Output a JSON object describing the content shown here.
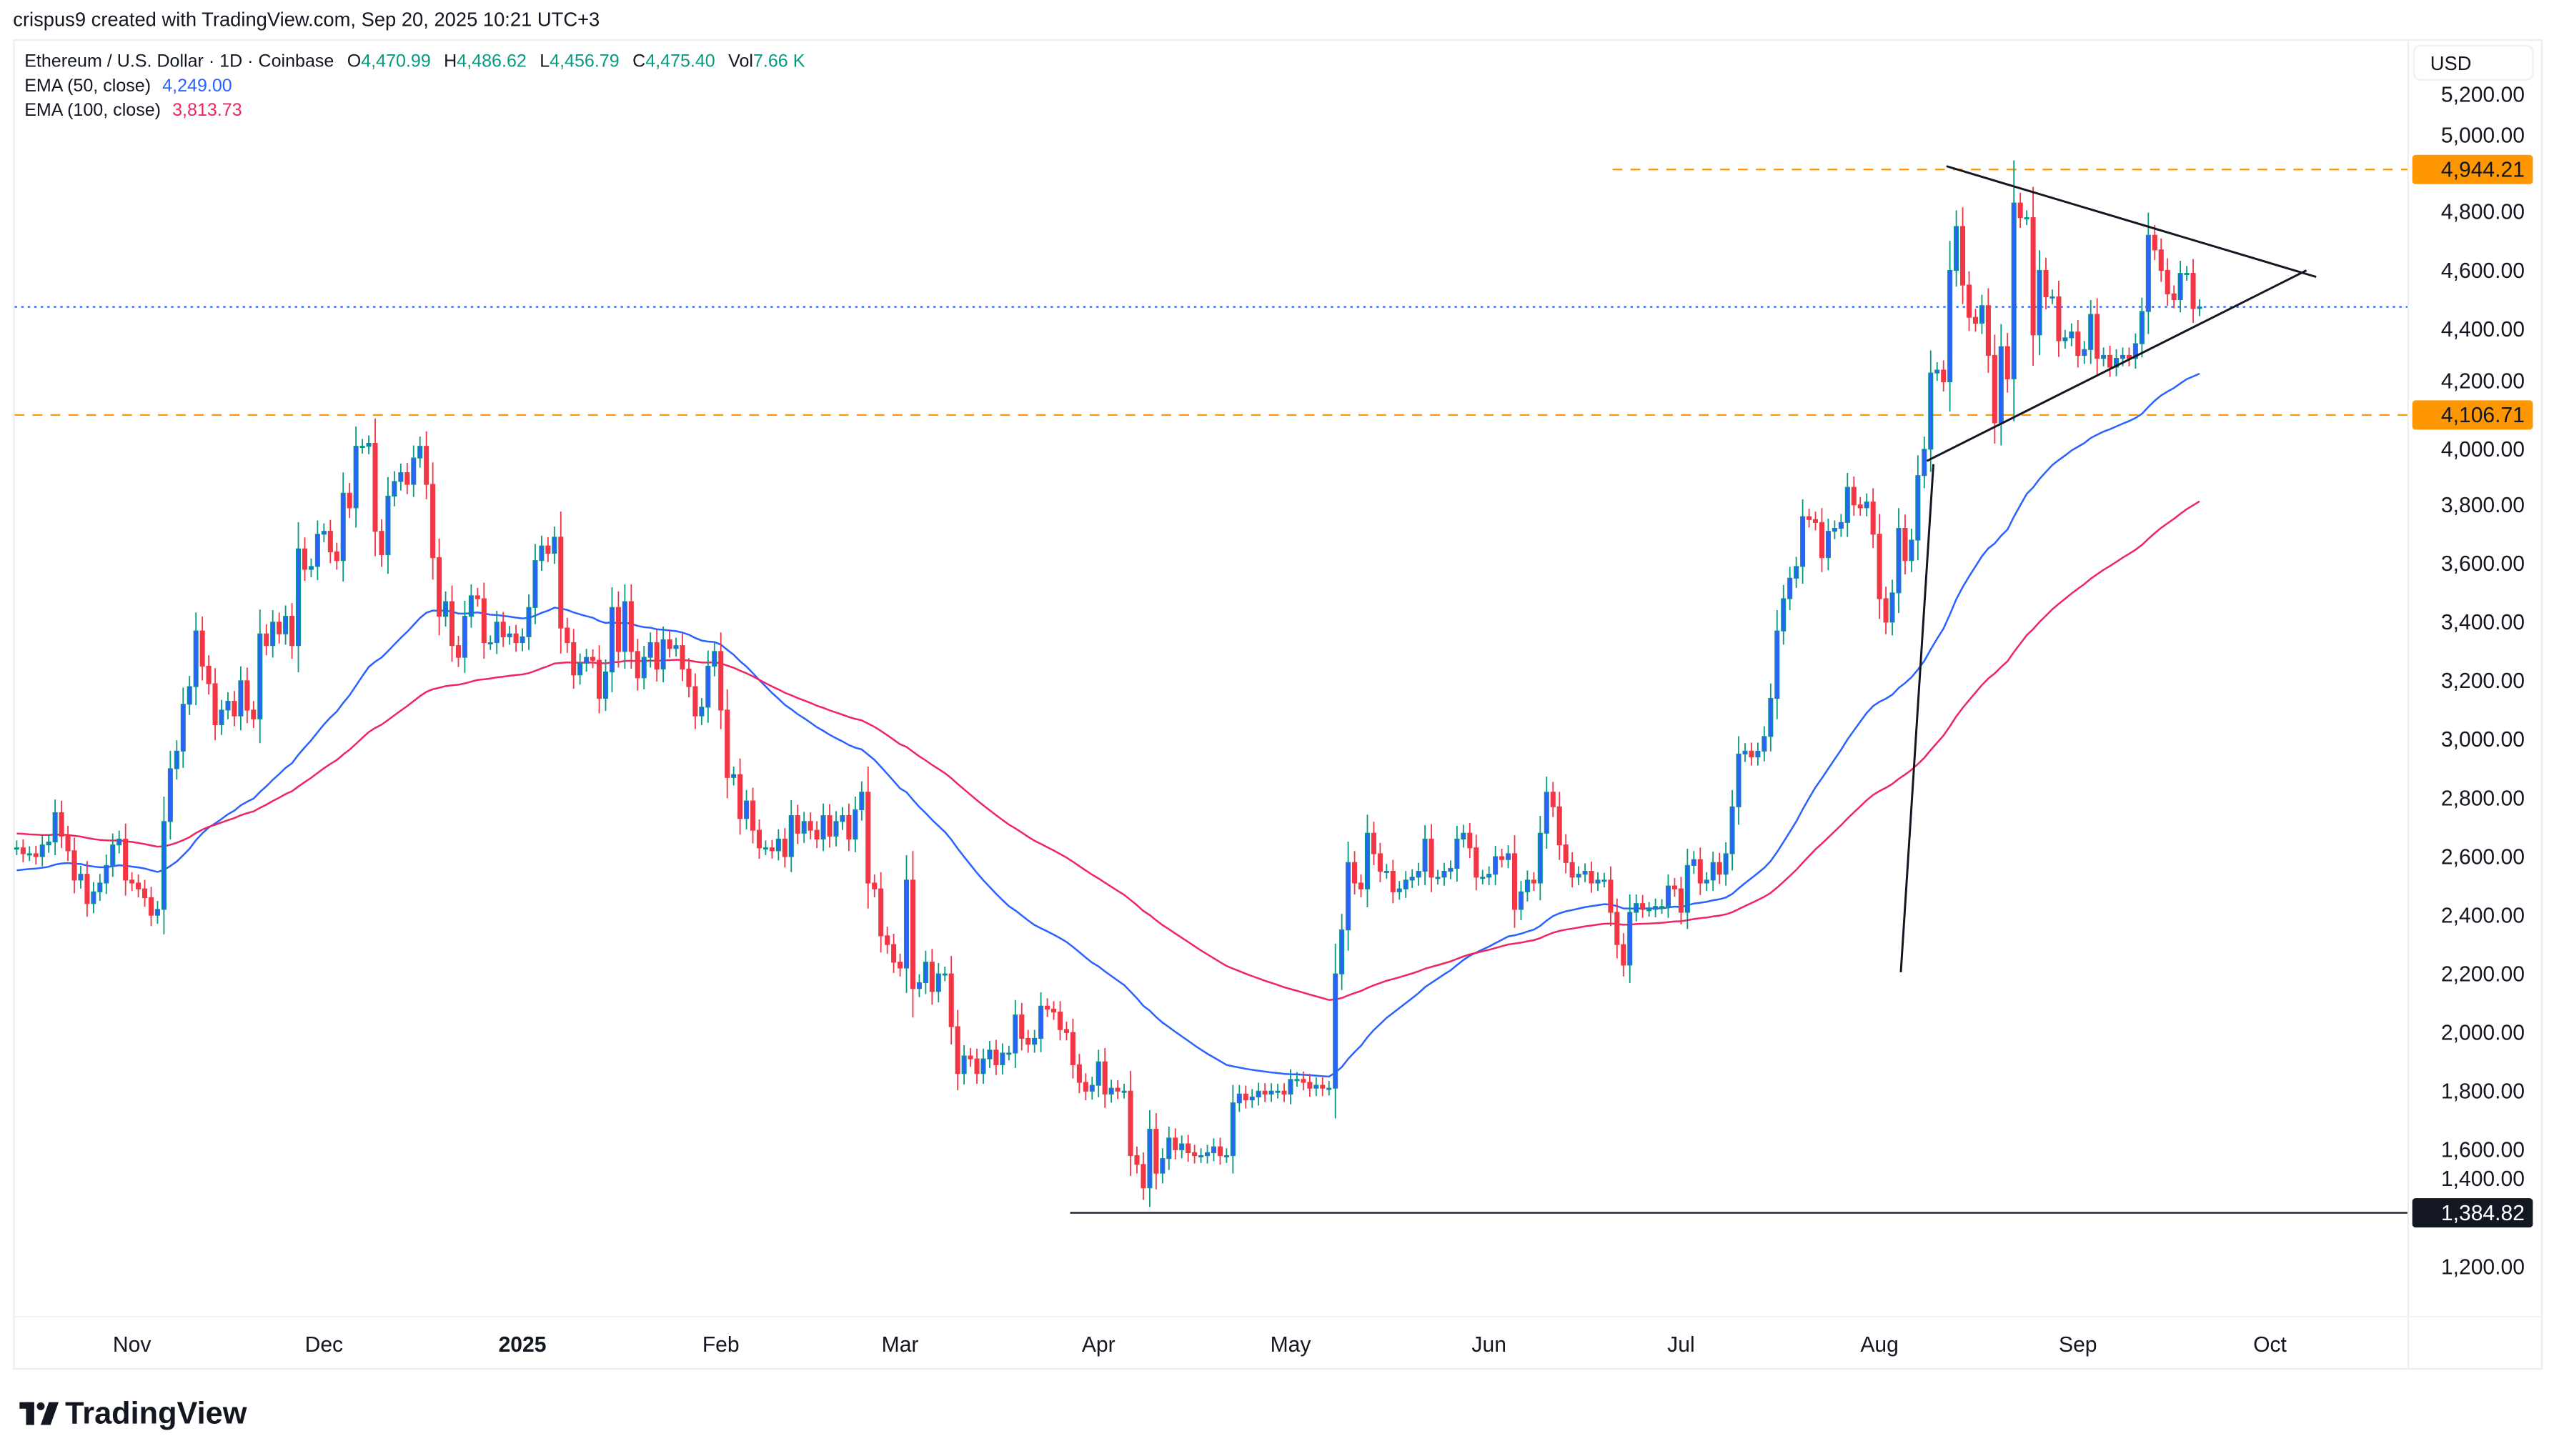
{
  "attribution": "crispus9 created with TradingView.com, Sep 20, 2025 10:21 UTC+3",
  "legend": {
    "symbol": "Ethereum / U.S. Dollar · 1D · Coinbase",
    "open_label": "O",
    "open": "4,470.99",
    "high_label": "H",
    "high": "4,486.62",
    "low_label": "L",
    "low": "4,456.79",
    "close_label": "C",
    "close": "4,475.40",
    "vol_label": "Vol",
    "vol": "7.66 K",
    "ema50_label": "EMA (50, close)",
    "ema50_value": "4,249.00",
    "ema100_label": "EMA (100, close)",
    "ema100_value": "3,813.73"
  },
  "currency": "USD",
  "logo_text": "TradingView",
  "colors": {
    "up_body": "#2962ff",
    "up_wick": "#089981",
    "down": "#f23645",
    "ema50": "#2962ff",
    "ema100": "#ef2660",
    "level": "#ff9800",
    "last_price_line": "#2962ff",
    "drawing": "#131722"
  },
  "chart_data": {
    "type": "candlestick",
    "title": "",
    "ylim": [
      1100,
      5300
    ],
    "y_ticks": [
      5200,
      5000,
      4800,
      4600,
      4400,
      4200,
      4000,
      3800,
      3600,
      3400,
      3200,
      3000,
      2800,
      2600,
      2400,
      2200,
      2000,
      1800,
      1600,
      1400,
      1200
    ],
    "y_tick_labels": [
      "5,200.00",
      "5,000.00",
      "4,800.00",
      "4,600.00",
      "4,400.00",
      "4,200.00",
      "4,000.00",
      "3,800.00",
      "3,600.00",
      "3,400.00",
      "3,200.00",
      "3,000.00",
      "2,800.00",
      "2,600.00",
      "2,400.00",
      "2,200.00",
      "2,000.00",
      "1,800.00",
      "1,600.00",
      "1,400.00",
      "1,200.00"
    ],
    "x_ticks": [
      {
        "date": "2024-11-01",
        "label": "Nov"
      },
      {
        "date": "2024-12-01",
        "label": "Dec"
      },
      {
        "date": "2025-01-01",
        "label": "2025",
        "bold": true
      },
      {
        "date": "2025-02-01",
        "label": "Feb"
      },
      {
        "date": "2025-03-01",
        "label": "Mar"
      },
      {
        "date": "2025-04-01",
        "label": "Apr"
      },
      {
        "date": "2025-05-01",
        "label": "May"
      },
      {
        "date": "2025-06-01",
        "label": "Jun"
      },
      {
        "date": "2025-07-01",
        "label": "Jul"
      },
      {
        "date": "2025-08-01",
        "label": "Aug"
      },
      {
        "date": "2025-09-01",
        "label": "Sep"
      },
      {
        "date": "2025-10-01",
        "label": "Oct"
      }
    ],
    "levels": [
      {
        "value": 4944.21,
        "label": "4,944.21",
        "style": "dashed",
        "color": "#ff9800"
      },
      {
        "value": 4106.71,
        "label": "4,106.71",
        "style": "dashed",
        "color": "#ff9800"
      },
      {
        "value": 1384.82,
        "label": "1,384.82",
        "style": "solid",
        "color": "#131722"
      }
    ],
    "last_price": 4475.4,
    "daily_closes": [
      {
        "month": "2024-10",
        "first_day": 14,
        "close": [
          2630,
          2610,
          2610,
          2600,
          2640,
          2650,
          2750,
          2670,
          2620,
          2520,
          2540,
          2440,
          2480,
          2510,
          2570,
          2640,
          2660,
          2520
        ]
      },
      {
        "month": "2024-11",
        "first_day": 1,
        "close": [
          2510,
          2490,
          2460,
          2400,
          2420,
          2720,
          2900,
          2960,
          3120,
          3180,
          3370,
          3250,
          3190,
          3050,
          3100,
          3130,
          3080,
          3200,
          3100,
          3070,
          3360,
          3320,
          3400,
          3360,
          3420,
          3320,
          3650,
          3580,
          3590,
          3700
        ]
      },
      {
        "month": "2024-12",
        "first_day": 1,
        "close": [
          3710,
          3640,
          3610,
          3840,
          3790,
          4000,
          4000,
          4010,
          3710,
          3630,
          3830,
          3880,
          3910,
          3870,
          3960,
          4000,
          3870,
          3620,
          3420,
          3470,
          3320,
          3280,
          3420,
          3490,
          3480,
          3330,
          3330,
          3400,
          3350,
          3360,
          3330
        ]
      },
      {
        "month": "2025-01",
        "first_day": 1,
        "close": [
          3350,
          3450,
          3610,
          3660,
          3635,
          3690,
          3380,
          3330,
          3220,
          3260,
          3280,
          3270,
          3140,
          3230,
          3450,
          3300,
          3470,
          3300,
          3210,
          3280,
          3330,
          3240,
          3340,
          3310,
          3320,
          3240,
          3180,
          3080,
          3110,
          3250,
          3300
        ]
      },
      {
        "month": "2025-02",
        "first_day": 1,
        "close": [
          3100,
          2870,
          2880,
          2730,
          2790,
          2690,
          2630,
          2630,
          2620,
          2660,
          2600,
          2740,
          2680,
          2720,
          2690,
          2660,
          2740,
          2670,
          2720,
          2740,
          2660,
          2760,
          2820,
          2510,
          2490,
          2330,
          2300,
          2240
        ]
      },
      {
        "month": "2025-03",
        "first_day": 1,
        "close": [
          2220,
          2520,
          2150,
          2170,
          2240,
          2140,
          2200,
          2200,
          2020,
          1860,
          1920,
          1910,
          1860,
          1910,
          1940,
          1890,
          1930,
          1930,
          2060,
          1980,
          1960,
          1980,
          2090,
          2080,
          2070,
          2010,
          2000,
          1890,
          1830,
          1800,
          1820
        ]
      },
      {
        "month": "2025-04",
        "first_day": 1,
        "close": [
          1900,
          1790,
          1810,
          1800,
          1800,
          1580,
          1550,
          1470,
          1670,
          1520,
          1570,
          1640,
          1600,
          1620,
          1590,
          1580,
          1580,
          1590,
          1610,
          1580,
          1580,
          1760,
          1790,
          1770,
          1780,
          1800,
          1790,
          1800,
          1800,
          1790
        ]
      },
      {
        "month": "2025-05",
        "first_day": 1,
        "close": [
          1840,
          1840,
          1830,
          1810,
          1820,
          1810,
          1810,
          2200,
          2350,
          2580,
          2510,
          2490,
          2680,
          2610,
          2550,
          2550,
          2480,
          2490,
          2520,
          2530,
          2550,
          2660,
          2530,
          2530,
          2550,
          2560,
          2660,
          2680,
          2630,
          2530,
          2530
        ]
      },
      {
        "month": "2025-06",
        "first_day": 1,
        "close": [
          2540,
          2600,
          2590,
          2610,
          2420,
          2480,
          2520,
          2510,
          2680,
          2820,
          2770,
          2640,
          2580,
          2530,
          2540,
          2550,
          2510,
          2520,
          2520,
          2410,
          2300,
          2230,
          2410,
          2440,
          2420,
          2420,
          2430,
          2430,
          2500,
          2490
        ]
      },
      {
        "month": "2025-07",
        "first_day": 1,
        "close": [
          2410,
          2570,
          2590,
          2510,
          2520,
          2580,
          2540,
          2610,
          2770,
          2950,
          2960,
          2940,
          2960,
          3010,
          3140,
          3370,
          3480,
          3550,
          3590,
          3760,
          3750,
          3740,
          3620,
          3710,
          3720,
          3740,
          3860,
          3800,
          3790,
          3810,
          3700
        ]
      },
      {
        "month": "2025-08",
        "first_day": 1,
        "close": [
          3480,
          3400,
          3500,
          3720,
          3610,
          3680,
          3900,
          3990,
          4250,
          4260,
          4220,
          4600,
          4750,
          4550,
          4440,
          4420,
          4480,
          4310,
          4080,
          4340,
          4230,
          4830,
          4780,
          4780,
          4380,
          4600,
          4510,
          4510,
          4360,
          4370,
          4390
        ]
      },
      {
        "month": "2025-09",
        "first_day": 1,
        "close": [
          4310,
          4330,
          4450,
          4300,
          4310,
          4270,
          4300,
          4310,
          4300,
          4350,
          4460,
          4720,
          4670,
          4600,
          4520,
          4500,
          4590,
          4590,
          4470,
          4475.4
        ]
      }
    ],
    "indicators": [
      {
        "name": "EMA (50, close)",
        "period": 50,
        "color": "#2962ff"
      },
      {
        "name": "EMA (100, close)",
        "period": 100,
        "color": "#ef2660"
      }
    ]
  }
}
